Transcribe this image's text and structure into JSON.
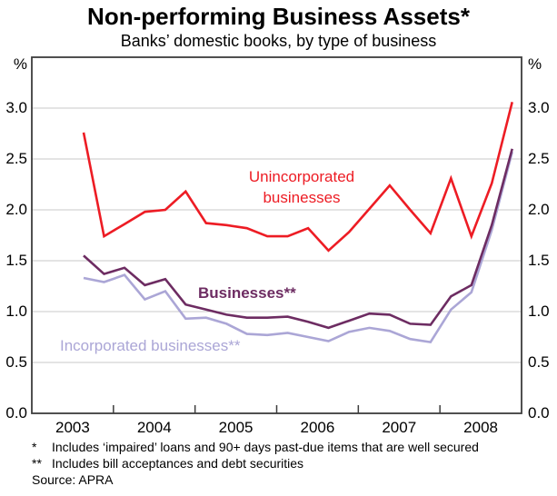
{
  "chart_data": {
    "type": "line",
    "title": "Non-performing Business Assets*",
    "subtitle": "Banks’ domestic books, by type of business",
    "unit": "%",
    "ylim": [
      0,
      3.5
    ],
    "yticks": [
      "0.0",
      "0.5",
      "1.0",
      "1.5",
      "2.0",
      "2.5",
      "3.0"
    ],
    "xticks_years": [
      "2003",
      "2004",
      "2005",
      "2006",
      "2007",
      "2008"
    ],
    "grid": true,
    "legend": "inline-labels",
    "x": [
      "Sep-03",
      "Dec-03",
      "Mar-04",
      "Jun-04",
      "Sep-04",
      "Dec-04",
      "Mar-05",
      "Jun-05",
      "Sep-05",
      "Dec-05",
      "Mar-06",
      "Jun-06",
      "Sep-06",
      "Dec-06",
      "Mar-07",
      "Jun-07",
      "Sep-07",
      "Dec-07",
      "Mar-08",
      "Jun-08",
      "Sep-08",
      "Dec-08"
    ],
    "series": [
      {
        "id": "unincorporated",
        "label": "Unincorporated\nbusinesses",
        "color": "#ed1c24",
        "values": [
          2.76,
          1.74,
          1.86,
          1.98,
          2.0,
          2.18,
          1.87,
          1.85,
          1.82,
          1.74,
          1.74,
          1.82,
          1.6,
          1.78,
          2.01,
          2.24,
          2.0,
          1.77,
          2.31,
          1.74,
          2.26,
          3.06
        ]
      },
      {
        "id": "businesses",
        "label": "Businesses**",
        "color": "#6d2c62",
        "values": [
          1.55,
          1.37,
          1.43,
          1.26,
          1.32,
          1.07,
          1.02,
          0.97,
          0.94,
          0.94,
          0.95,
          0.9,
          0.84,
          0.91,
          0.98,
          0.97,
          0.88,
          0.87,
          1.15,
          1.26,
          1.85,
          2.6
        ]
      },
      {
        "id": "incorporated",
        "label": "Incorporated businesses**",
        "color": "#aba6d6",
        "values": [
          1.33,
          1.29,
          1.36,
          1.12,
          1.2,
          0.93,
          0.94,
          0.88,
          0.78,
          0.77,
          0.79,
          0.75,
          0.71,
          0.8,
          0.84,
          0.81,
          0.73,
          0.7,
          1.02,
          1.19,
          1.8,
          2.57
        ]
      }
    ]
  },
  "footnotes": [
    {
      "marker": "*",
      "text": "Includes ‘impaired’ loans and 90+ days past-due items that are well secured"
    },
    {
      "marker": "**",
      "text": "Includes bill acceptances and debt securities"
    }
  ],
  "source": "Source: APRA"
}
